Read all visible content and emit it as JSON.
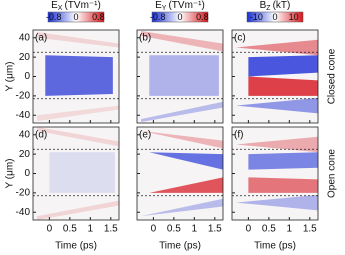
{
  "colorbars": [
    {
      "symbol": "E",
      "subscript": "X",
      "unit": "(TVm⁻¹)",
      "lim": [
        -1,
        1
      ],
      "ticks": [
        -0.8,
        0,
        0.8
      ]
    },
    {
      "symbol": "E",
      "subscript": "Y",
      "unit": "(TVm⁻¹)",
      "lim": [
        -1,
        1
      ],
      "ticks": [
        -0.8,
        0,
        0.8
      ]
    },
    {
      "symbol": "B",
      "subscript": "Z",
      "unit": "(kT)",
      "lim": [
        -15,
        15
      ],
      "ticks": [
        -10,
        0,
        10
      ]
    }
  ],
  "axes": {
    "y_label": "Y (μm)",
    "x_label": "Time (ps)",
    "ylim": [
      -48,
      48
    ],
    "yticks": [
      40,
      20,
      0,
      -20,
      -40
    ],
    "xlim": [
      -0.4,
      1.7
    ],
    "xticks": [
      0,
      0.5,
      1,
      1.5
    ]
  },
  "rows": [
    {
      "label": "Closed cone",
      "panels": [
        "(a)",
        "(b)",
        "(c)"
      ]
    },
    {
      "label": "Open cone",
      "panels": [
        "(d)",
        "(e)",
        "(f)"
      ]
    }
  ]
}
